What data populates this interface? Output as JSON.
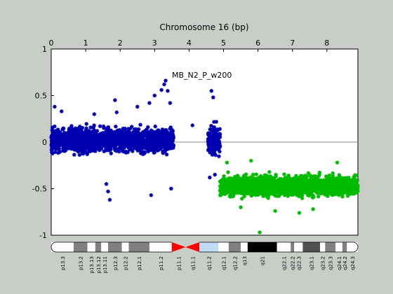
{
  "chart_data": {
    "type": "scatter",
    "title": "Chromosome 16 (bp)",
    "annotation": "MB_N2_P_w200",
    "xlim": [
      0,
      8.9
    ],
    "ylim": [
      -1,
      1
    ],
    "x_ticks": [
      0,
      1,
      2,
      3,
      4,
      5,
      6,
      7,
      8
    ],
    "y_ticks": [
      -1,
      -0.5,
      0,
      0.5,
      1
    ],
    "reference_line_y": 0,
    "series": [
      {
        "color": "#0000b0",
        "segments": [
          {
            "x_range": [
              0.0,
              3.55
            ],
            "center": 0.02,
            "spread": 0.12
          },
          {
            "x_range": [
              4.55,
              4.9
            ],
            "center": 0.02,
            "spread": 0.14
          }
        ],
        "outliers": [
          [
            0.1,
            0.38
          ],
          [
            0.3,
            0.33
          ],
          [
            1.25,
            0.3
          ],
          [
            1.9,
            0.32
          ],
          [
            1.85,
            0.45
          ],
          [
            2.5,
            0.38
          ],
          [
            2.85,
            0.42
          ],
          [
            3.0,
            0.5
          ],
          [
            3.2,
            0.56
          ],
          [
            3.28,
            0.62
          ],
          [
            3.32,
            0.66
          ],
          [
            3.38,
            0.55
          ],
          [
            3.45,
            0.42
          ],
          [
            1.6,
            -0.45
          ],
          [
            1.65,
            -0.53
          ],
          [
            1.7,
            -0.62
          ],
          [
            2.9,
            -0.57
          ],
          [
            3.48,
            -0.5
          ],
          [
            4.1,
            0.18
          ],
          [
            4.65,
            0.55
          ],
          [
            4.7,
            0.48
          ],
          [
            4.6,
            -0.38
          ],
          [
            4.75,
            -0.35
          ]
        ]
      },
      {
        "color": "#00bb00",
        "segments": [
          {
            "x_range": [
              4.9,
              8.9
            ],
            "center": -0.47,
            "spread": 0.1
          }
        ],
        "outliers": [
          [
            6.05,
            -0.97
          ],
          [
            5.1,
            -0.22
          ],
          [
            5.8,
            -0.2
          ],
          [
            6.5,
            -0.74
          ],
          [
            7.2,
            -0.76
          ],
          [
            8.3,
            -0.22
          ],
          [
            7.6,
            -0.72
          ],
          [
            5.5,
            -0.7
          ]
        ]
      }
    ],
    "ideogram": {
      "bands": [
        {
          "label": "p13.3",
          "start": 0.0,
          "end": 0.65,
          "stain": "gneg"
        },
        {
          "label": "p13.2",
          "start": 0.65,
          "end": 1.05,
          "stain": "gpos50"
        },
        {
          "label": "p13.13",
          "start": 1.05,
          "end": 1.28,
          "stain": "gneg"
        },
        {
          "label": "p13.12",
          "start": 1.28,
          "end": 1.45,
          "stain": "gpos50"
        },
        {
          "label": "p13.11",
          "start": 1.45,
          "end": 1.65,
          "stain": "gneg"
        },
        {
          "label": "p12.3",
          "start": 1.65,
          "end": 2.05,
          "stain": "gpos50"
        },
        {
          "label": "p12.2",
          "start": 2.05,
          "end": 2.25,
          "stain": "gneg"
        },
        {
          "label": "p12.1",
          "start": 2.25,
          "end": 2.85,
          "stain": "gpos50"
        },
        {
          "label": "p11.2",
          "start": 2.85,
          "end": 3.5,
          "stain": "gneg"
        },
        {
          "label": "p11.1",
          "start": 3.5,
          "end": 3.9,
          "stain": "acen"
        },
        {
          "label": "q11.1",
          "start": 3.9,
          "end": 4.3,
          "stain": "acen"
        },
        {
          "label": "q11.2",
          "start": 4.3,
          "end": 4.85,
          "stain": "gvar"
        },
        {
          "label": "q12.1",
          "start": 4.85,
          "end": 5.15,
          "stain": "gneg"
        },
        {
          "label": "q12.2",
          "start": 5.15,
          "end": 5.5,
          "stain": "gpos50"
        },
        {
          "label": "q13",
          "start": 5.5,
          "end": 5.7,
          "stain": "gneg"
        },
        {
          "label": "q21",
          "start": 5.7,
          "end": 6.55,
          "stain": "gpos100"
        },
        {
          "label": "q22.1",
          "start": 6.55,
          "end": 6.95,
          "stain": "gneg"
        },
        {
          "label": "q22.2",
          "start": 6.95,
          "end": 7.05,
          "stain": "gpos50"
        },
        {
          "label": "q22.3",
          "start": 7.05,
          "end": 7.3,
          "stain": "gneg"
        },
        {
          "label": "q23.1",
          "start": 7.3,
          "end": 7.8,
          "stain": "gpos75"
        },
        {
          "label": "q23.2",
          "start": 7.8,
          "end": 7.95,
          "stain": "gneg"
        },
        {
          "label": "q23.3",
          "start": 7.95,
          "end": 8.25,
          "stain": "gpos50"
        },
        {
          "label": "q24.1",
          "start": 8.25,
          "end": 8.45,
          "stain": "gneg"
        },
        {
          "label": "q24.2",
          "start": 8.45,
          "end": 8.58,
          "stain": "gpos50"
        },
        {
          "label": "q24.3",
          "start": 8.58,
          "end": 8.9,
          "stain": "gneg"
        }
      ]
    }
  }
}
